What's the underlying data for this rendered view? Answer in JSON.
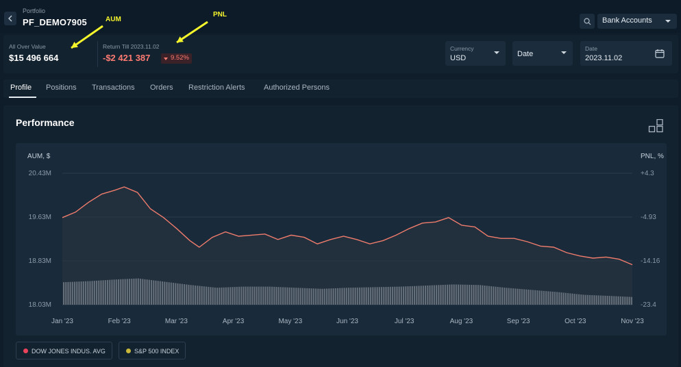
{
  "header": {
    "portfolio_label": "Portfolio",
    "portfolio_name": "PF_DEMO7905",
    "bank_accounts_label": "Bank Accounts",
    "back_icon": "chevron-left-icon",
    "search_icon": "search-icon"
  },
  "summary": {
    "aov_label": "All Over Value",
    "aov_value": "$15 496 664",
    "return_label": "Return Till 2023.11.02",
    "return_value": "-$2 421 387",
    "return_pct": "9.52%",
    "currency_label": "Currency",
    "currency_value": "USD",
    "date_select_label": "Date",
    "date_label": "Date",
    "date_value": "2023.11.02"
  },
  "tabs": [
    "Profile",
    "Positions",
    "Transactions",
    "Orders",
    "Restriction Alerts",
    "Authorized Persons"
  ],
  "performance": {
    "title": "Performance"
  },
  "annotations": {
    "aum": "AUM",
    "pnl": "PNL"
  },
  "colors": {
    "aum_line": "#f07c6c",
    "bars": "#c8ced4",
    "dow_dot": "#e8435a",
    "sp_dot": "#c9b83a",
    "annotation": "#f5f52c"
  },
  "chart_data": {
    "type": "line",
    "ylabel": "AUM, $",
    "ylabel_right": "PNL, %",
    "y_ticks": [
      "20.43M",
      "19.63M",
      "18.83M",
      "18.03M"
    ],
    "y_ticks_value": [
      20.43,
      19.63,
      18.83,
      18.03
    ],
    "ylim": [
      18.03,
      20.43
    ],
    "y2_ticks": [
      "+4.3",
      "-4.93",
      "-14.16",
      "-23.4"
    ],
    "y2lim": [
      -23.4,
      4.3
    ],
    "x_ticks": [
      "Jan '23",
      "Feb '23",
      "Mar '23",
      "Apr '23",
      "May '23",
      "Jun '23",
      "Jul '23",
      "Aug '23",
      "Sep '23",
      "Oct '23",
      "Nov '23"
    ],
    "x_range": [
      "2023-01-01",
      "2023-11-01"
    ],
    "series": [
      {
        "type": "line",
        "points": [
          [
            "2023-01-01",
            19.62
          ],
          [
            "2023-01-08",
            19.72
          ],
          [
            "2023-01-15",
            19.9
          ],
          [
            "2023-01-22",
            20.05
          ],
          [
            "2023-01-29",
            20.12
          ],
          [
            "2023-02-03",
            20.18
          ],
          [
            "2023-02-10",
            20.08
          ],
          [
            "2023-02-17",
            19.78
          ],
          [
            "2023-02-24",
            19.62
          ],
          [
            "2023-03-03",
            19.42
          ],
          [
            "2023-03-10",
            19.2
          ],
          [
            "2023-03-15",
            19.08
          ],
          [
            "2023-03-22",
            19.26
          ],
          [
            "2023-03-29",
            19.36
          ],
          [
            "2023-04-05",
            19.28
          ],
          [
            "2023-04-12",
            19.3
          ],
          [
            "2023-04-19",
            19.32
          ],
          [
            "2023-04-26",
            19.22
          ],
          [
            "2023-05-03",
            19.3
          ],
          [
            "2023-05-10",
            19.26
          ],
          [
            "2023-05-17",
            19.14
          ],
          [
            "2023-05-24",
            19.22
          ],
          [
            "2023-05-31",
            19.28
          ],
          [
            "2023-06-07",
            19.22
          ],
          [
            "2023-06-14",
            19.14
          ],
          [
            "2023-06-21",
            19.2
          ],
          [
            "2023-06-28",
            19.3
          ],
          [
            "2023-07-05",
            19.42
          ],
          [
            "2023-07-12",
            19.52
          ],
          [
            "2023-07-19",
            19.54
          ],
          [
            "2023-07-26",
            19.62
          ],
          [
            "2023-08-02",
            19.48
          ],
          [
            "2023-08-09",
            19.45
          ],
          [
            "2023-08-16",
            19.28
          ],
          [
            "2023-08-23",
            19.24
          ],
          [
            "2023-08-30",
            19.24
          ],
          [
            "2023-09-06",
            19.18
          ],
          [
            "2023-09-13",
            19.1
          ],
          [
            "2023-09-20",
            19.08
          ],
          [
            "2023-09-27",
            18.98
          ],
          [
            "2023-10-04",
            18.92
          ],
          [
            "2023-10-11",
            18.88
          ],
          [
            "2023-10-18",
            18.9
          ],
          [
            "2023-10-25",
            18.86
          ],
          [
            "2023-11-01",
            18.76
          ]
        ]
      },
      {
        "type": "bar",
        "points": [
          [
            "2023-01-01",
            18.44
          ],
          [
            "2023-01-15",
            18.46
          ],
          [
            "2023-01-29",
            18.49
          ],
          [
            "2023-02-10",
            18.51
          ],
          [
            "2023-02-24",
            18.45
          ],
          [
            "2023-03-10",
            18.39
          ],
          [
            "2023-03-24",
            18.34
          ],
          [
            "2023-04-07",
            18.36
          ],
          [
            "2023-04-21",
            18.36
          ],
          [
            "2023-05-05",
            18.34
          ],
          [
            "2023-05-19",
            18.32
          ],
          [
            "2023-06-02",
            18.34
          ],
          [
            "2023-06-16",
            18.35
          ],
          [
            "2023-06-30",
            18.36
          ],
          [
            "2023-07-14",
            18.38
          ],
          [
            "2023-07-28",
            18.4
          ],
          [
            "2023-08-11",
            18.39
          ],
          [
            "2023-08-25",
            18.34
          ],
          [
            "2023-09-08",
            18.3
          ],
          [
            "2023-09-22",
            18.26
          ],
          [
            "2023-10-06",
            18.21
          ],
          [
            "2023-10-20",
            18.19
          ],
          [
            "2023-11-01",
            18.17
          ]
        ]
      }
    ],
    "legend": [
      {
        "name": "DOW JONES INDUS. AVG",
        "color": "#e8435a"
      },
      {
        "name": "S&P 500 INDEX",
        "color": "#c9b83a"
      }
    ],
    "grid": true
  }
}
